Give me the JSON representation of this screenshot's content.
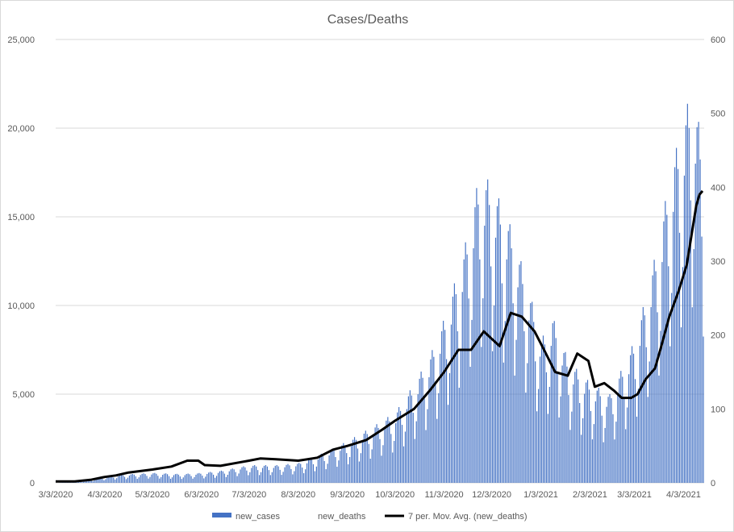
{
  "chart_data": {
    "type": "bar+line",
    "title": "Cases/Deaths",
    "x_range": [
      "3/3/2020",
      "4/15/2021"
    ],
    "x_tick_labels": [
      "3/3/2020",
      "4/3/2020",
      "5/3/2020",
      "6/3/2020",
      "7/3/2020",
      "8/3/2020",
      "9/3/2020",
      "10/3/2020",
      "11/3/2020",
      "12/3/2020",
      "1/3/2021",
      "2/3/2021",
      "3/3/2021",
      "4/3/2021"
    ],
    "y_left": {
      "min": 0,
      "max": 25000,
      "ticks": [
        "0",
        "5,000",
        "10,000",
        "15,000",
        "20,000",
        "25,000"
      ]
    },
    "y_right": {
      "min": 0,
      "max": 600,
      "ticks": [
        "0",
        "100",
        "200",
        "300",
        "400",
        "500",
        "600"
      ]
    },
    "grid": true,
    "legend_position": "bottom",
    "legend": [
      "new_cases",
      "new_deaths",
      "7 per. Mov. Avg. (new_deaths)"
    ],
    "colors": {
      "new_cases": "#4472c4",
      "moving_avg": "#000000",
      "grid": "#d9d9d9",
      "text": "#595959"
    },
    "series": [
      {
        "name": "new_cases",
        "axis": "left",
        "kind": "bar",
        "anchors": [
          [
            "2020-03-05",
            20
          ],
          [
            "2020-03-20",
            80
          ],
          [
            "2020-04-01",
            250
          ],
          [
            "2020-04-10",
            350
          ],
          [
            "2020-04-20",
            400
          ],
          [
            "2020-05-03",
            450
          ],
          [
            "2020-05-20",
            400
          ],
          [
            "2020-06-03",
            450
          ],
          [
            "2020-06-15",
            550
          ],
          [
            "2020-07-03",
            800
          ],
          [
            "2020-07-20",
            800
          ],
          [
            "2020-08-03",
            900
          ],
          [
            "2020-08-20",
            1400
          ],
          [
            "2020-09-03",
            1900
          ],
          [
            "2020-09-20",
            2600
          ],
          [
            "2020-10-03",
            3200
          ],
          [
            "2020-10-15",
            4500
          ],
          [
            "2020-10-25",
            5800
          ],
          [
            "2020-11-03",
            7500
          ],
          [
            "2020-11-15",
            10500
          ],
          [
            "2020-11-25",
            14000
          ],
          [
            "2020-12-03",
            13500
          ],
          [
            "2020-12-15",
            11500
          ],
          [
            "2020-12-25",
            9000
          ],
          [
            "2021-01-03",
            6500
          ],
          [
            "2021-01-10",
            7500
          ],
          [
            "2021-01-20",
            5500
          ],
          [
            "2021-02-03",
            4500
          ],
          [
            "2021-02-15",
            4000
          ],
          [
            "2021-02-25",
            5500
          ],
          [
            "2021-03-03",
            6500
          ],
          [
            "2021-03-10",
            8500
          ],
          [
            "2021-03-18",
            11000
          ],
          [
            "2021-03-25",
            14000
          ],
          [
            "2021-04-03",
            16500
          ],
          [
            "2021-04-08",
            18000
          ],
          [
            "2021-04-15",
            15000
          ]
        ]
      },
      {
        "name": "new_deaths",
        "axis": "right",
        "kind": "bar",
        "values": []
      },
      {
        "name": "7 per. Mov. Avg. (new_deaths)",
        "axis": "right",
        "kind": "line",
        "points": [
          [
            "2020-03-03",
            2
          ],
          [
            "2020-03-15",
            2
          ],
          [
            "2020-03-25",
            4
          ],
          [
            "2020-04-03",
            8
          ],
          [
            "2020-04-10",
            10
          ],
          [
            "2020-04-18",
            14
          ],
          [
            "2020-05-03",
            18
          ],
          [
            "2020-05-15",
            22
          ],
          [
            "2020-05-25",
            30
          ],
          [
            "2020-06-01",
            30
          ],
          [
            "2020-06-05",
            24
          ],
          [
            "2020-06-15",
            23
          ],
          [
            "2020-06-25",
            27
          ],
          [
            "2020-07-03",
            30
          ],
          [
            "2020-07-10",
            33
          ],
          [
            "2020-07-20",
            32
          ],
          [
            "2020-08-03",
            30
          ],
          [
            "2020-08-15",
            34
          ],
          [
            "2020-08-25",
            45
          ],
          [
            "2020-09-03",
            50
          ],
          [
            "2020-09-15",
            58
          ],
          [
            "2020-09-25",
            72
          ],
          [
            "2020-10-03",
            84
          ],
          [
            "2020-10-15",
            100
          ],
          [
            "2020-10-25",
            125
          ],
          [
            "2020-11-03",
            150
          ],
          [
            "2020-11-12",
            180
          ],
          [
            "2020-11-20",
            180
          ],
          [
            "2020-11-28",
            205
          ],
          [
            "2020-12-03",
            195
          ],
          [
            "2020-12-08",
            185
          ],
          [
            "2020-12-15",
            230
          ],
          [
            "2020-12-22",
            225
          ],
          [
            "2020-12-30",
            205
          ],
          [
            "2021-01-05",
            180
          ],
          [
            "2021-01-12",
            150
          ],
          [
            "2021-01-20",
            145
          ],
          [
            "2021-01-26",
            175
          ],
          [
            "2021-02-02",
            165
          ],
          [
            "2021-02-06",
            130
          ],
          [
            "2021-02-12",
            135
          ],
          [
            "2021-02-18",
            125
          ],
          [
            "2021-02-23",
            115
          ],
          [
            "2021-03-01",
            115
          ],
          [
            "2021-03-05",
            120
          ],
          [
            "2021-03-10",
            140
          ],
          [
            "2021-03-16",
            155
          ],
          [
            "2021-03-20",
            185
          ],
          [
            "2021-03-25",
            225
          ],
          [
            "2021-03-31",
            260
          ],
          [
            "2021-04-05",
            295
          ],
          [
            "2021-04-08",
            335
          ],
          [
            "2021-04-11",
            375
          ],
          [
            "2021-04-13",
            390
          ],
          [
            "2021-04-15",
            395
          ]
        ]
      }
    ]
  }
}
